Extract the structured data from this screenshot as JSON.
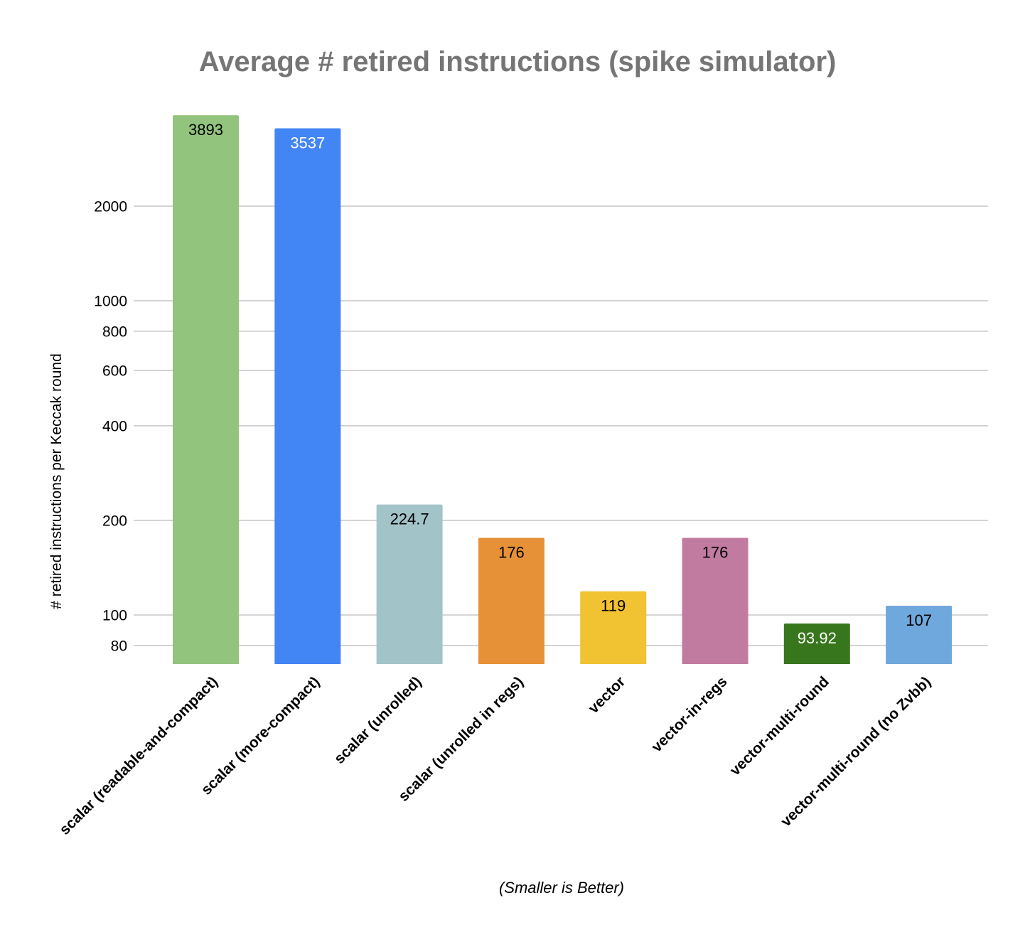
{
  "chart_data": {
    "type": "bar",
    "title": "Average # retired instructions (spike simulator)",
    "ylabel": "# retired instructions per Keccak round",
    "xlabel": "(Smaller is Better)",
    "yscale": "log",
    "ylim": [
      69,
      4300
    ],
    "yticks": [
      80,
      100,
      200,
      400,
      600,
      800,
      1000,
      2000
    ],
    "ytick_labels": [
      "80",
      "100",
      "200",
      "400",
      "600",
      "800",
      "1000",
      "2000"
    ],
    "grid": true,
    "legend": "none",
    "categories": [
      "scalar (readable-and-compact)",
      "scalar (more-compact)",
      "scalar (unrolled)",
      "scalar (unrolled in regs)",
      "vector",
      "vector-in-regs",
      "vector-multi-round",
      "vector-multi-round (no Zvbb)"
    ],
    "values": [
      3893,
      3537,
      224.7,
      176,
      119,
      176,
      93.92,
      107
    ],
    "value_labels": [
      "3893",
      "3537",
      "224.7",
      "176",
      "119",
      "176",
      "93.92",
      "107"
    ],
    "colors": [
      "#93c47d",
      "#4285f4",
      "#a2c4c9",
      "#e69138",
      "#f1c232",
      "#c27ba0",
      "#38761d",
      "#6fa8dc"
    ],
    "label_colors": [
      "#000000",
      "#ffffff",
      "#000000",
      "#000000",
      "#000000",
      "#000000",
      "#ffffff",
      "#000000"
    ],
    "text_color": "#000000",
    "title_color": "#757575",
    "grid_color": "#c6c6c6"
  }
}
